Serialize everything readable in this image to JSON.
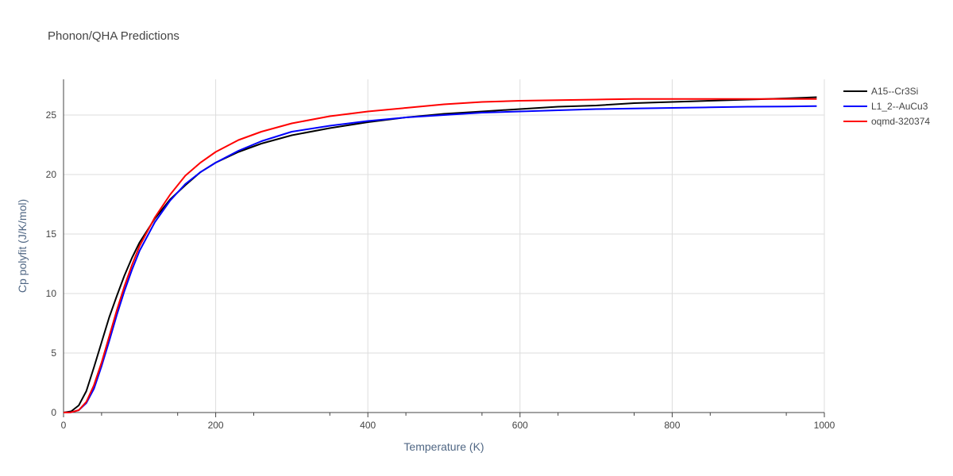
{
  "chart_data": {
    "type": "line",
    "title": "Phonon/QHA Predictions",
    "xlabel": "Temperature (K)",
    "ylabel": "Cp polyfit (J/K/mol)",
    "xlim": [
      0,
      1000
    ],
    "ylim": [
      0,
      28
    ],
    "xticks": [
      0,
      200,
      400,
      600,
      800,
      1000
    ],
    "yticks": [
      0,
      5,
      10,
      15,
      20,
      25
    ],
    "grid": true,
    "legend_position": "top-right",
    "series": [
      {
        "name": "A15--Cr3Si",
        "color": "#000000",
        "x": [
          0,
          10,
          20,
          30,
          40,
          50,
          60,
          70,
          80,
          90,
          100,
          120,
          140,
          160,
          180,
          200,
          230,
          260,
          300,
          350,
          400,
          450,
          500,
          550,
          600,
          650,
          700,
          750,
          800,
          850,
          900,
          950,
          990
        ],
        "y": [
          0,
          0.1,
          0.6,
          1.8,
          3.8,
          5.9,
          8.0,
          9.8,
          11.5,
          13.0,
          14.3,
          16.3,
          17.9,
          19.1,
          20.2,
          21.0,
          21.9,
          22.6,
          23.3,
          23.9,
          24.4,
          24.8,
          25.1,
          25.3,
          25.5,
          25.7,
          25.8,
          26.0,
          26.1,
          26.2,
          26.3,
          26.4,
          26.5
        ]
      },
      {
        "name": "L1_2--AuCu3",
        "color": "#0000ff",
        "x": [
          0,
          10,
          20,
          30,
          40,
          50,
          60,
          70,
          80,
          90,
          100,
          120,
          140,
          160,
          180,
          200,
          230,
          260,
          300,
          350,
          400,
          450,
          500,
          550,
          600,
          650,
          700,
          750,
          800,
          850,
          900,
          950,
          990
        ],
        "y": [
          0,
          0.02,
          0.2,
          0.8,
          2.0,
          3.9,
          6.0,
          8.2,
          10.2,
          12.0,
          13.6,
          16.0,
          17.8,
          19.2,
          20.2,
          21.0,
          22.0,
          22.8,
          23.6,
          24.1,
          24.5,
          24.8,
          25.0,
          25.2,
          25.3,
          25.4,
          25.5,
          25.55,
          25.6,
          25.65,
          25.7,
          25.72,
          25.75
        ]
      },
      {
        "name": "oqmd-320374",
        "color": "#ff0000",
        "x": [
          0,
          10,
          20,
          30,
          40,
          50,
          60,
          70,
          80,
          90,
          100,
          120,
          140,
          160,
          180,
          200,
          230,
          260,
          300,
          350,
          400,
          450,
          500,
          550,
          600,
          650,
          700,
          750,
          800,
          850,
          900,
          950,
          990
        ],
        "y": [
          0,
          0.02,
          0.2,
          0.9,
          2.3,
          4.2,
          6.4,
          8.6,
          10.6,
          12.4,
          14.0,
          16.4,
          18.3,
          19.9,
          21.0,
          21.9,
          22.9,
          23.6,
          24.3,
          24.9,
          25.3,
          25.6,
          25.9,
          26.1,
          26.2,
          26.25,
          26.3,
          26.35,
          26.35,
          26.35,
          26.35,
          26.35,
          26.35
        ]
      }
    ]
  }
}
